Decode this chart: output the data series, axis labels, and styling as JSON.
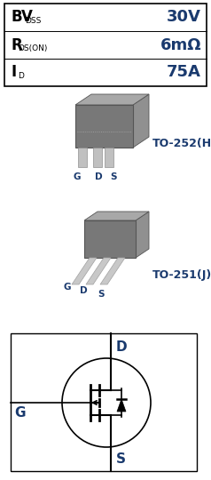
{
  "table_rows": [
    {
      "label": "BV",
      "label_sub": "DSS",
      "value": "30V"
    },
    {
      "label": "R",
      "label_sub": "DS(ON)",
      "value": "6mΩ"
    },
    {
      "label": "I",
      "label_sub": "D",
      "value": "75A"
    }
  ],
  "package1_label": "TO-252(H)",
  "package2_label": "TO-251(J)",
  "text_color": "#1a3a6e",
  "bg_color": "#ffffff",
  "body_color": "#787878",
  "body_dark": "#505050",
  "body_light": "#a0a0a0",
  "lead_color": "#b8b8b8",
  "mosfet_D": "D",
  "mosfet_G": "G",
  "mosfet_S": "S"
}
